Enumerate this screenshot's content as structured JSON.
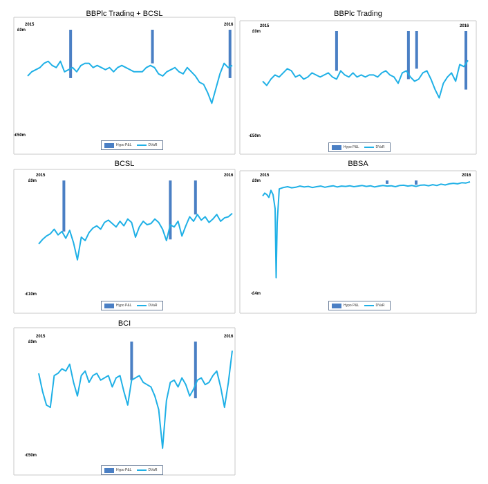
{
  "colors": {
    "hypo_bar": "#4a7fc4",
    "dvar_line": "#1fb0e6",
    "frame": "#c8c8c8",
    "legend_border": "#6c7f9a"
  },
  "chart_data": [
    {
      "type": "bar+line",
      "title": "BBPlc Trading + BCSL",
      "x_start_label": "2015",
      "x_end_label": "2016",
      "y_top_label": "£0m",
      "y_bottom_label": "-£50m",
      "ylim": [
        -50,
        0
      ],
      "legend": {
        "position": "bottom-center",
        "items": [
          "Hypo P&L",
          "DVaR"
        ]
      },
      "series": [
        {
          "name": "Hypo P&L",
          "kind": "bar",
          "points": [
            [
              0.21,
              -23
            ],
            [
              0.61,
              -16
            ],
            [
              0.989,
              -23
            ]
          ]
        },
        {
          "name": "DVaR",
          "kind": "line",
          "x": [
            0,
            0.02,
            0.04,
            0.06,
            0.08,
            0.1,
            0.12,
            0.14,
            0.16,
            0.18,
            0.2,
            0.22,
            0.24,
            0.26,
            0.28,
            0.3,
            0.32,
            0.34,
            0.36,
            0.38,
            0.4,
            0.42,
            0.44,
            0.46,
            0.48,
            0.5,
            0.52,
            0.54,
            0.56,
            0.58,
            0.6,
            0.62,
            0.64,
            0.66,
            0.68,
            0.7,
            0.72,
            0.74,
            0.76,
            0.78,
            0.8,
            0.82,
            0.84,
            0.86,
            0.88,
            0.9,
            0.92,
            0.94,
            0.96,
            0.98,
            1
          ],
          "values": [
            -22,
            -20,
            -19,
            -18,
            -16,
            -15,
            -17,
            -18,
            -15,
            -20,
            -19,
            -18,
            -20,
            -17,
            -16,
            -16,
            -18,
            -17,
            -18,
            -19,
            -18,
            -20,
            -18,
            -17,
            -18,
            -19,
            -20,
            -20,
            -20,
            -18,
            -17,
            -18,
            -21,
            -22,
            -20,
            -19,
            -18,
            -20,
            -21,
            -18,
            -20,
            -22,
            -25,
            -26,
            -30,
            -35,
            -28,
            -21,
            -16,
            -18,
            -17
          ]
        }
      ]
    },
    {
      "type": "bar+line",
      "title": "BBPlc Trading",
      "x_start_label": "2015",
      "x_end_label": "2016",
      "y_top_label": "£0m",
      "y_bottom_label": "-£50m",
      "ylim": [
        -50,
        0
      ],
      "legend": {
        "position": "bottom-center",
        "items": [
          "Hypo P&L",
          "DVaR"
        ]
      },
      "series": [
        {
          "name": "Hypo P&L",
          "kind": "bar",
          "points": [
            [
              0.36,
              -19
            ],
            [
              0.71,
              -23
            ],
            [
              0.75,
              -18
            ],
            [
              0.99,
              -28
            ]
          ]
        },
        {
          "name": "DVaR",
          "kind": "line",
          "x": [
            0,
            0.02,
            0.04,
            0.06,
            0.08,
            0.1,
            0.12,
            0.14,
            0.16,
            0.18,
            0.2,
            0.22,
            0.24,
            0.26,
            0.28,
            0.3,
            0.32,
            0.34,
            0.36,
            0.38,
            0.4,
            0.42,
            0.44,
            0.46,
            0.48,
            0.5,
            0.52,
            0.54,
            0.56,
            0.58,
            0.6,
            0.62,
            0.64,
            0.66,
            0.68,
            0.7,
            0.72,
            0.74,
            0.76,
            0.78,
            0.8,
            0.82,
            0.84,
            0.86,
            0.88,
            0.9,
            0.92,
            0.94,
            0.96,
            0.98,
            1
          ],
          "values": [
            -24,
            -26,
            -23,
            -21,
            -22,
            -20,
            -18,
            -19,
            -22,
            -21,
            -23,
            -22,
            -20,
            -21,
            -22,
            -21,
            -20,
            -22,
            -23,
            -19,
            -21,
            -22,
            -20,
            -22,
            -21,
            -22,
            -21,
            -21,
            -22,
            -20,
            -19,
            -21,
            -22,
            -25,
            -20,
            -19,
            -22,
            -24,
            -23,
            -20,
            -19,
            -23,
            -28,
            -32,
            -25,
            -22,
            -20,
            -24,
            -16,
            -17,
            -14
          ]
        }
      ]
    },
    {
      "type": "bar+line",
      "title": "BCSL",
      "x_start_label": "2015",
      "x_end_label": "2016",
      "y_top_label": "£0m",
      "y_bottom_label": "-£10m",
      "ylim": [
        -10,
        0
      ],
      "legend": {
        "position": "bottom-center",
        "items": [
          "Hypo P&L",
          "DVaR"
        ]
      },
      "series": [
        {
          "name": "Hypo P&L",
          "kind": "bar",
          "points": [
            [
              0.13,
              -4.5
            ],
            [
              0.68,
              -5.2
            ],
            [
              0.81,
              -3.0
            ]
          ]
        },
        {
          "name": "DVaR",
          "kind": "line",
          "x": [
            0,
            0.02,
            0.04,
            0.06,
            0.08,
            0.1,
            0.12,
            0.14,
            0.16,
            0.18,
            0.2,
            0.22,
            0.24,
            0.26,
            0.28,
            0.3,
            0.32,
            0.34,
            0.36,
            0.38,
            0.4,
            0.42,
            0.44,
            0.46,
            0.48,
            0.5,
            0.52,
            0.54,
            0.56,
            0.58,
            0.6,
            0.62,
            0.64,
            0.66,
            0.68,
            0.7,
            0.72,
            0.74,
            0.76,
            0.78,
            0.8,
            0.82,
            0.84,
            0.86,
            0.88,
            0.9,
            0.92,
            0.94,
            0.96,
            0.98,
            1
          ],
          "values": [
            -5.6,
            -5.2,
            -4.9,
            -4.7,
            -4.3,
            -4.8,
            -4.5,
            -5.1,
            -4.4,
            -5.5,
            -7.0,
            -5.0,
            -5.3,
            -4.6,
            -4.2,
            -4.0,
            -4.3,
            -3.7,
            -3.5,
            -3.8,
            -4.1,
            -3.6,
            -4.0,
            -3.4,
            -3.7,
            -5.0,
            -4.1,
            -3.6,
            -3.9,
            -3.8,
            -3.4,
            -3.7,
            -4.3,
            -5.3,
            -3.9,
            -4.1,
            -3.6,
            -4.9,
            -4.0,
            -3.2,
            -3.6,
            -3.0,
            -3.5,
            -3.2,
            -3.7,
            -3.4,
            -3.0,
            -3.6,
            -3.3,
            -3.2,
            -2.9
          ]
        }
      ]
    },
    {
      "type": "bar+line",
      "title": "BBSA",
      "x_start_label": "2015",
      "x_end_label": "2016",
      "y_top_label": "£0m",
      "y_bottom_label": "-£4m",
      "ylim": [
        -4,
        0
      ],
      "legend": {
        "position": "bottom-center",
        "items": [
          "Hypo P&L",
          "DVaR"
        ]
      },
      "series": [
        {
          "name": "Hypo P&L",
          "kind": "bar",
          "points": [
            [
              0.6,
              -0.12
            ],
            [
              0.74,
              -0.15
            ]
          ]
        },
        {
          "name": "DVaR",
          "kind": "line",
          "x": [
            0,
            0.01,
            0.02,
            0.03,
            0.04,
            0.05,
            0.06,
            0.065,
            0.07,
            0.08,
            0.1,
            0.12,
            0.14,
            0.16,
            0.18,
            0.2,
            0.22,
            0.24,
            0.26,
            0.28,
            0.3,
            0.32,
            0.34,
            0.36,
            0.38,
            0.4,
            0.42,
            0.44,
            0.46,
            0.48,
            0.5,
            0.52,
            0.54,
            0.56,
            0.58,
            0.6,
            0.62,
            0.64,
            0.66,
            0.68,
            0.7,
            0.72,
            0.74,
            0.76,
            0.78,
            0.8,
            0.82,
            0.84,
            0.86,
            0.88,
            0.9,
            0.92,
            0.94,
            0.96,
            0.98,
            1
          ],
          "values": [
            -0.55,
            -0.45,
            -0.5,
            -0.6,
            -0.35,
            -0.5,
            -1.0,
            -3.45,
            -1.5,
            -0.3,
            -0.25,
            -0.22,
            -0.26,
            -0.24,
            -0.2,
            -0.23,
            -0.21,
            -0.25,
            -0.22,
            -0.2,
            -0.24,
            -0.21,
            -0.19,
            -0.23,
            -0.2,
            -0.21,
            -0.19,
            -0.22,
            -0.2,
            -0.18,
            -0.21,
            -0.19,
            -0.23,
            -0.2,
            -0.18,
            -0.2,
            -0.19,
            -0.22,
            -0.18,
            -0.17,
            -0.2,
            -0.18,
            -0.21,
            -0.17,
            -0.16,
            -0.19,
            -0.15,
            -0.18,
            -0.13,
            -0.16,
            -0.12,
            -0.1,
            -0.12,
            -0.08,
            -0.09,
            -0.05
          ]
        }
      ]
    },
    {
      "type": "bar+line",
      "title": "BCI",
      "x_start_label": "2015",
      "x_end_label": "2016",
      "y_top_label": "£0m",
      "y_bottom_label": "-£50m",
      "ylim": [
        -50,
        0
      ],
      "legend": {
        "position": "bottom-center",
        "items": [
          "Hypo P&L",
          "DVaR"
        ]
      },
      "series": [
        {
          "name": "Hypo P&L",
          "kind": "bar",
          "points": [
            [
              0.48,
              -17
            ],
            [
              0.81,
              -25
            ]
          ]
        },
        {
          "name": "DVaR",
          "kind": "line",
          "x": [
            0,
            0.02,
            0.04,
            0.06,
            0.08,
            0.1,
            0.12,
            0.14,
            0.16,
            0.18,
            0.2,
            0.22,
            0.24,
            0.26,
            0.28,
            0.3,
            0.32,
            0.34,
            0.36,
            0.38,
            0.4,
            0.42,
            0.44,
            0.46,
            0.48,
            0.5,
            0.52,
            0.54,
            0.56,
            0.58,
            0.6,
            0.62,
            0.64,
            0.66,
            0.68,
            0.7,
            0.72,
            0.74,
            0.76,
            0.78,
            0.8,
            0.82,
            0.84,
            0.86,
            0.88,
            0.9,
            0.92,
            0.94,
            0.96,
            0.98,
            1
          ],
          "values": [
            -14,
            -22,
            -28,
            -29,
            -15,
            -14,
            -12,
            -13,
            -10,
            -18,
            -24,
            -15,
            -13,
            -18,
            -15,
            -14,
            -17,
            -16,
            -15,
            -20,
            -16,
            -15,
            -22,
            -28,
            -17,
            -16,
            -15,
            -18,
            -19,
            -20,
            -24,
            -30,
            -47,
            -26,
            -18,
            -17,
            -20,
            -16,
            -19,
            -24,
            -21,
            -17,
            -16,
            -19,
            -18,
            -15,
            -13,
            -20,
            -29,
            -18,
            -4
          ]
        }
      ]
    }
  ]
}
